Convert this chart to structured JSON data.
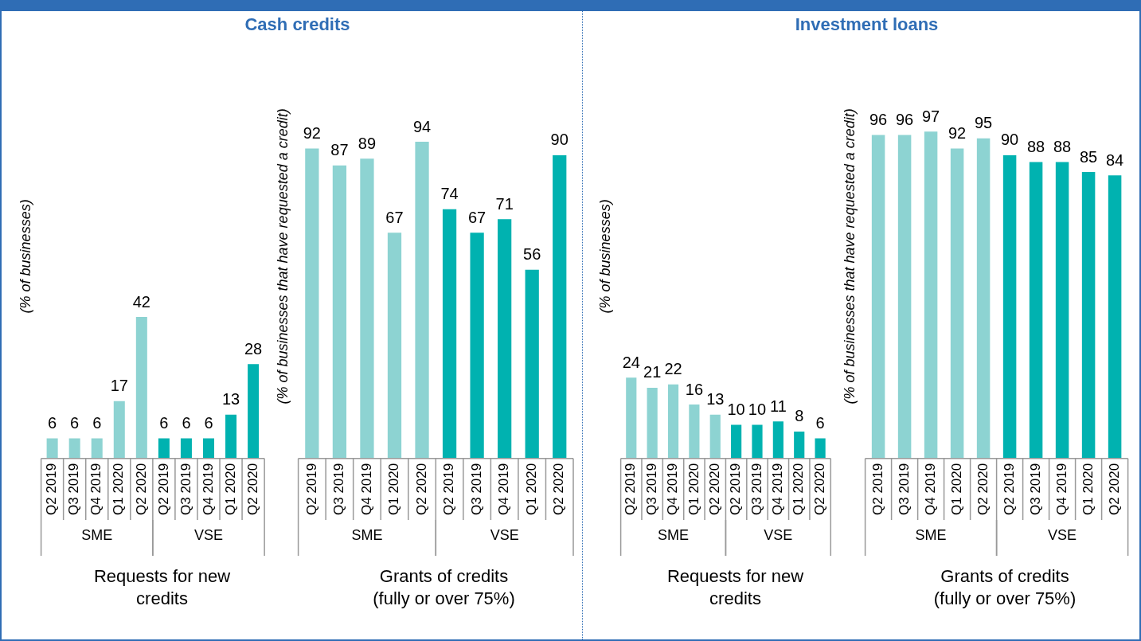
{
  "chart_data": [
    {
      "type": "bar",
      "title": "Cash credits",
      "xlabel": "Requests for new credits",
      "ylabel": "(% of businesses)",
      "categories": [
        "Q2 2019",
        "Q3 2019",
        "Q4 2019",
        "Q1 2020",
        "Q2 2020",
        "Q2 2019",
        "Q3 2019",
        "Q4 2019",
        "Q1 2020",
        "Q2 2020"
      ],
      "tick_labels": "x",
      "data_labels": true,
      "legend": false,
      "grid": false,
      "series": [
        {
          "name": "SME",
          "color": "#8dd3d2",
          "values": [
            6,
            6,
            6,
            17,
            42,
            null,
            null,
            null,
            null,
            null
          ]
        },
        {
          "name": "VSE",
          "color": "#00b2b0",
          "values": [
            null,
            null,
            null,
            null,
            null,
            6,
            6,
            6,
            13,
            28
          ]
        }
      ]
    },
    {
      "type": "bar",
      "xlabel": "Grants of credits (fully or over 75%)",
      "ylabel": "(% of businesses that have requested a credit)",
      "categories": [
        "Q2 2019",
        "Q3 2019",
        "Q4 2019",
        "Q1 2020",
        "Q2 2020",
        "Q2 2019",
        "Q3 2019",
        "Q4 2019",
        "Q1 2020",
        "Q2 2020"
      ],
      "tick_labels": "x",
      "data_labels": true,
      "legend": false,
      "grid": false,
      "series": [
        {
          "name": "SME",
          "color": "#8dd3d2",
          "values": [
            92,
            87,
            89,
            67,
            94,
            null,
            null,
            null,
            null,
            null
          ]
        },
        {
          "name": "VSE",
          "color": "#00b2b0",
          "values": [
            null,
            null,
            null,
            null,
            null,
            74,
            67,
            71,
            56,
            90
          ]
        }
      ]
    },
    {
      "type": "bar",
      "title": "Investment loans",
      "xlabel": "Requests for new credits",
      "ylabel": "(% of businesses)",
      "categories": [
        "Q2 2019",
        "Q3 2019",
        "Q4 2019",
        "Q1 2020",
        "Q2 2020",
        "Q2 2019",
        "Q3 2019",
        "Q4 2019",
        "Q1 2020",
        "Q2 2020"
      ],
      "tick_labels": "x",
      "data_labels": true,
      "legend": false,
      "grid": false,
      "series": [
        {
          "name": "SME",
          "color": "#8dd3d2",
          "values": [
            24,
            21,
            22,
            16,
            13,
            null,
            null,
            null,
            null,
            null
          ]
        },
        {
          "name": "VSE",
          "color": "#00b2b0",
          "values": [
            null,
            null,
            null,
            null,
            null,
            10,
            10,
            11,
            8,
            6
          ]
        }
      ]
    },
    {
      "type": "bar",
      "xlabel": "Grants of credits (fully or over 75%)",
      "ylabel": "(% of businesses that have requested a credit)",
      "categories": [
        "Q2 2019",
        "Q3 2019",
        "Q4 2019",
        "Q1 2020",
        "Q2 2020",
        "Q2 2019",
        "Q3 2019",
        "Q4 2019",
        "Q1 2020",
        "Q2 2020"
      ],
      "tick_labels": "x",
      "data_labels": true,
      "legend": false,
      "grid": false,
      "series": [
        {
          "name": "SME",
          "color": "#8dd3d2",
          "values": [
            96,
            96,
            97,
            92,
            95,
            null,
            null,
            null,
            null,
            null
          ]
        },
        {
          "name": "VSE",
          "color": "#00b2b0",
          "values": [
            null,
            null,
            null,
            null,
            null,
            90,
            88,
            88,
            85,
            84
          ]
        }
      ]
    }
  ]
}
